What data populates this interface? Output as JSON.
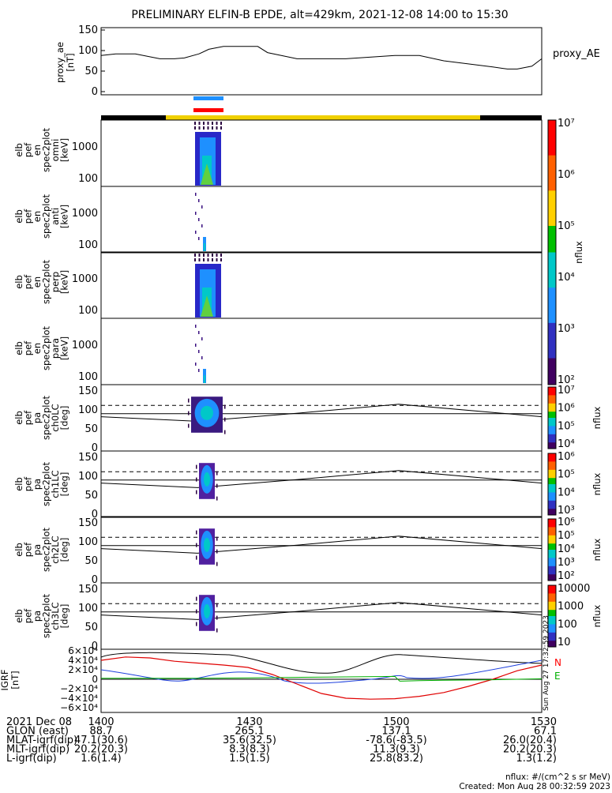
{
  "title": "PRELIMINARY ELFIN-B EPDE, alt=429km, 2021-12-08 14:00 to 15:30",
  "colors": {
    "north": "#ff0000",
    "blue": "#1e90ff",
    "yellow": "#f0d000",
    "green": "#00b000"
  },
  "panels": {
    "proxy": {
      "ylabel": [
        "proxy_ae",
        "[nT]"
      ],
      "legend": "proxy_AE",
      "ticks": [
        "150",
        "100",
        "50",
        "0"
      ]
    },
    "omni": {
      "ylabel": [
        "elb",
        "pef",
        "en",
        "spec2plot",
        "omni",
        "[keV]"
      ],
      "ticks": [
        "1000",
        "100"
      ]
    },
    "anti": {
      "ylabel": [
        "elb",
        "pef",
        "en",
        "spec2plot",
        "anti",
        "[keV]"
      ],
      "ticks": [
        "1000",
        "100"
      ]
    },
    "perp": {
      "ylabel": [
        "elb",
        "pef",
        "en",
        "spec2plot",
        "perp",
        "[keV]"
      ],
      "ticks": [
        "1000",
        "100"
      ]
    },
    "para": {
      "ylabel": [
        "elb",
        "pef",
        "en",
        "spec2plot",
        "para",
        "[keV]"
      ],
      "ticks": [
        "1000",
        "100"
      ]
    },
    "ch0": {
      "ylabel": [
        "elb",
        "pef",
        "pa",
        "spec2plot",
        "ch0LC",
        "[deg]"
      ],
      "ticks": [
        "150",
        "100",
        "50",
        "0"
      ]
    },
    "ch1": {
      "ylabel": [
        "elb",
        "pef",
        "pa",
        "spec2plot",
        "ch1LC",
        "[deg]"
      ],
      "ticks": [
        "150",
        "100",
        "50",
        "0"
      ]
    },
    "ch2": {
      "ylabel": [
        "elb",
        "pef",
        "pa",
        "spec2plot",
        "ch2LC",
        "[deg]"
      ],
      "ticks": [
        "150",
        "100",
        "50",
        "0"
      ]
    },
    "ch3": {
      "ylabel": [
        "elb",
        "pef",
        "pa",
        "spec2plot",
        "ch3LC",
        "[deg]"
      ],
      "ticks": [
        "150",
        "100",
        "50",
        "0"
      ]
    },
    "igrf": {
      "ylabel": [
        "IGRF",
        "[nT]"
      ],
      "ticks": [
        "6×10⁴",
        "4×10⁴",
        "2×10⁴",
        "0",
        "−2×10⁴",
        "−4×10⁴",
        "−6×10⁴"
      ],
      "legend": [
        "N",
        "E"
      ],
      "stamp": "Sun Aug 27 17:32:59 2023"
    }
  },
  "colorbars": {
    "en": {
      "label": "nflux",
      "ticks": [
        "10⁷",
        "10⁶",
        "10⁵",
        "10⁴",
        "10³",
        "10²"
      ]
    },
    "pa0": {
      "label": "nflux",
      "ticks": [
        "10⁷",
        "10⁶",
        "10⁵",
        "10⁴"
      ]
    },
    "pa1": {
      "label": "nflux",
      "ticks": [
        "10⁶",
        "10⁵",
        "10⁴",
        "10³"
      ]
    },
    "pa2": {
      "label": "nflux",
      "ticks": [
        "10⁶",
        "10⁵",
        "10⁴",
        "10³",
        "10²"
      ]
    },
    "pa3": {
      "label": "nflux",
      "ticks": [
        "10000",
        "1000",
        "100",
        "10"
      ]
    }
  },
  "footer": {
    "rows": [
      {
        "label": "2021 Dec 08",
        "vals": [
          "1400",
          "1430",
          "1500",
          "1530"
        ]
      },
      {
        "label": "GLON (east)",
        "vals": [
          "88.7",
          "265.1",
          "137.1",
          "67.1"
        ]
      },
      {
        "label": "MLAT-igrf(dip)",
        "vals": [
          "47.1(30.6)",
          "35.6(32.5)",
          "-78.6(-83.5)",
          "26.0(20.4)"
        ]
      },
      {
        "label": "MLT-igrf(dip)",
        "vals": [
          "20.2(20.3)",
          "8.3(8.3)",
          "11.3(9.3)",
          "20.2(20.3)"
        ]
      },
      {
        "label": "L-igrf(dip)",
        "vals": [
          "1.6(1.4)",
          "1.5(1.5)",
          "25.8(83.2)",
          "1.3(1.2)"
        ]
      }
    ],
    "units": "nflux: #/(cm^2 s sr MeV)",
    "created": "Created: Mon Aug 28 00:32:59 2023"
  },
  "chart_data": {
    "type": "line",
    "x_range": [
      "14:00",
      "15:30"
    ],
    "series": [
      {
        "panel": "proxy_ae",
        "unit": "nT",
        "ylim": [
          0,
          150
        ],
        "x": [
          "14:00",
          "14:03",
          "14:07",
          "14:12",
          "14:15",
          "14:17",
          "14:20",
          "14:22",
          "14:25",
          "14:26",
          "14:29",
          "14:32",
          "14:34",
          "14:40",
          "14:50",
          "15:00",
          "15:05",
          "15:10",
          "15:20",
          "15:23",
          "15:25",
          "15:28",
          "15:30"
        ],
        "values": [
          88,
          92,
          92,
          80,
          80,
          82,
          92,
          103,
          110,
          110,
          110,
          110,
          95,
          80,
          80,
          88,
          88,
          75,
          60,
          55,
          55,
          62,
          80
        ]
      },
      {
        "panel": "igrf",
        "name": "N",
        "unit": "nT",
        "ylim": [
          -60000,
          60000
        ],
        "x": [
          "14:00",
          "14:05",
          "14:10",
          "14:15",
          "14:20",
          "14:25",
          "14:30",
          "14:35",
          "14:40",
          "14:45",
          "14:50",
          "14:55",
          "15:00",
          "15:05",
          "15:10",
          "15:15",
          "15:20",
          "15:25",
          "15:30"
        ],
        "values": [
          40000,
          47000,
          45000,
          38000,
          34000,
          30000,
          25000,
          10000,
          -10000,
          -30000,
          -40000,
          -42000,
          -41000,
          -36000,
          -28000,
          -15000,
          0,
          18000,
          30000
        ]
      },
      {
        "panel": "igrf",
        "name": "E",
        "unit": "nT",
        "ylim": [
          -60000,
          60000
        ],
        "x": [
          "14:00",
          "14:10",
          "14:20",
          "14:30",
          "14:40",
          "14:50",
          "15:00",
          "15:01",
          "15:05",
          "15:10",
          "15:20",
          "15:30"
        ],
        "values": [
          2000,
          2000,
          2000,
          3000,
          4000,
          5000,
          6000,
          -4000,
          -3000,
          -2000,
          -1000,
          1000
        ]
      }
    ]
  }
}
